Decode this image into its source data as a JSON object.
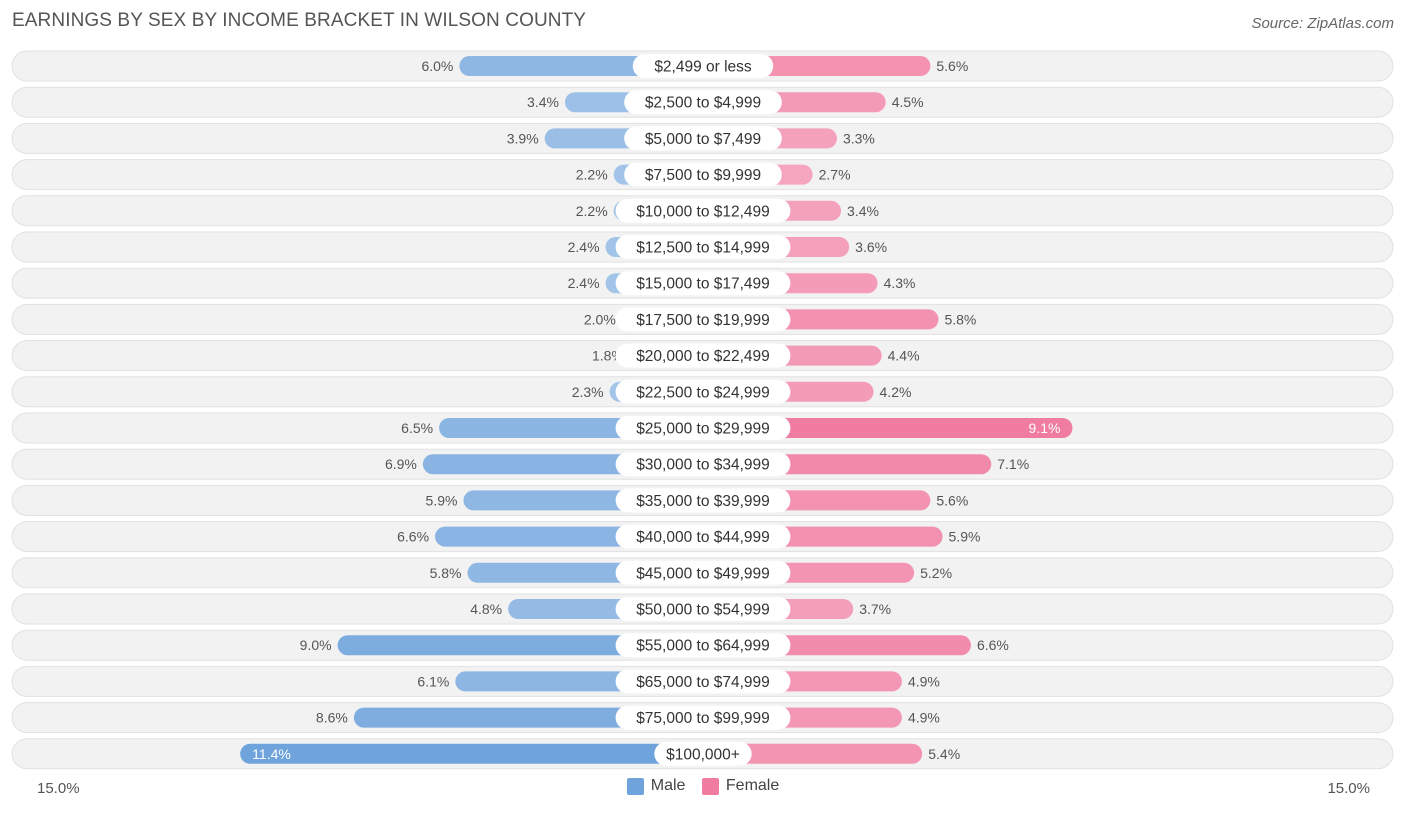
{
  "chart_data": {
    "type": "bar",
    "orientation": "horizontal-diverging",
    "title": "EARNINGS BY SEX BY INCOME BRACKET IN WILSON COUNTY",
    "source": "Source: ZipAtlas.com",
    "categories": [
      "$2,499 or less",
      "$2,500 to $4,999",
      "$5,000 to $7,499",
      "$7,500 to $9,999",
      "$10,000 to $12,499",
      "$12,500 to $14,999",
      "$15,000 to $17,499",
      "$17,500 to $19,999",
      "$20,000 to $22,499",
      "$22,500 to $24,999",
      "$25,000 to $29,999",
      "$30,000 to $34,999",
      "$35,000 to $39,999",
      "$40,000 to $44,999",
      "$45,000 to $49,999",
      "$50,000 to $54,999",
      "$55,000 to $64,999",
      "$65,000 to $74,999",
      "$75,000 to $99,999",
      "$100,000+"
    ],
    "series": [
      {
        "name": "Male",
        "color": "#6fa3dc",
        "values": [
          6.0,
          3.4,
          3.9,
          2.2,
          2.2,
          2.4,
          2.4,
          2.0,
          1.8,
          2.3,
          6.5,
          6.9,
          5.9,
          6.6,
          5.8,
          4.8,
          9.0,
          6.1,
          8.6,
          11.4
        ],
        "labels": [
          "6.0%",
          "3.4%",
          "3.9%",
          "2.2%",
          "2.2%",
          "2.4%",
          "2.4%",
          "2.0%",
          "1.8%",
          "2.3%",
          "6.5%",
          "6.9%",
          "5.9%",
          "6.6%",
          "5.8%",
          "4.8%",
          "9.0%",
          "6.1%",
          "8.6%",
          "11.4%"
        ]
      },
      {
        "name": "Female",
        "color": "#f07ca0",
        "values": [
          5.6,
          4.5,
          3.3,
          2.7,
          3.4,
          3.6,
          4.3,
          5.8,
          4.4,
          4.2,
          9.1,
          7.1,
          5.6,
          5.9,
          5.2,
          3.7,
          6.6,
          4.9,
          4.9,
          5.4
        ],
        "labels": [
          "5.6%",
          "4.5%",
          "3.3%",
          "2.7%",
          "3.4%",
          "3.6%",
          "4.3%",
          "5.8%",
          "4.4%",
          "4.2%",
          "9.1%",
          "7.1%",
          "5.6%",
          "5.9%",
          "5.2%",
          "3.7%",
          "6.6%",
          "4.9%",
          "4.9%",
          "5.4%"
        ]
      }
    ],
    "xlim": [
      -15.0,
      15.0
    ],
    "axis_min_label": "15.0%",
    "axis_max_label": "15.0%",
    "legend": [
      "Male",
      "Female"
    ],
    "legend_position": "bottom-center"
  }
}
